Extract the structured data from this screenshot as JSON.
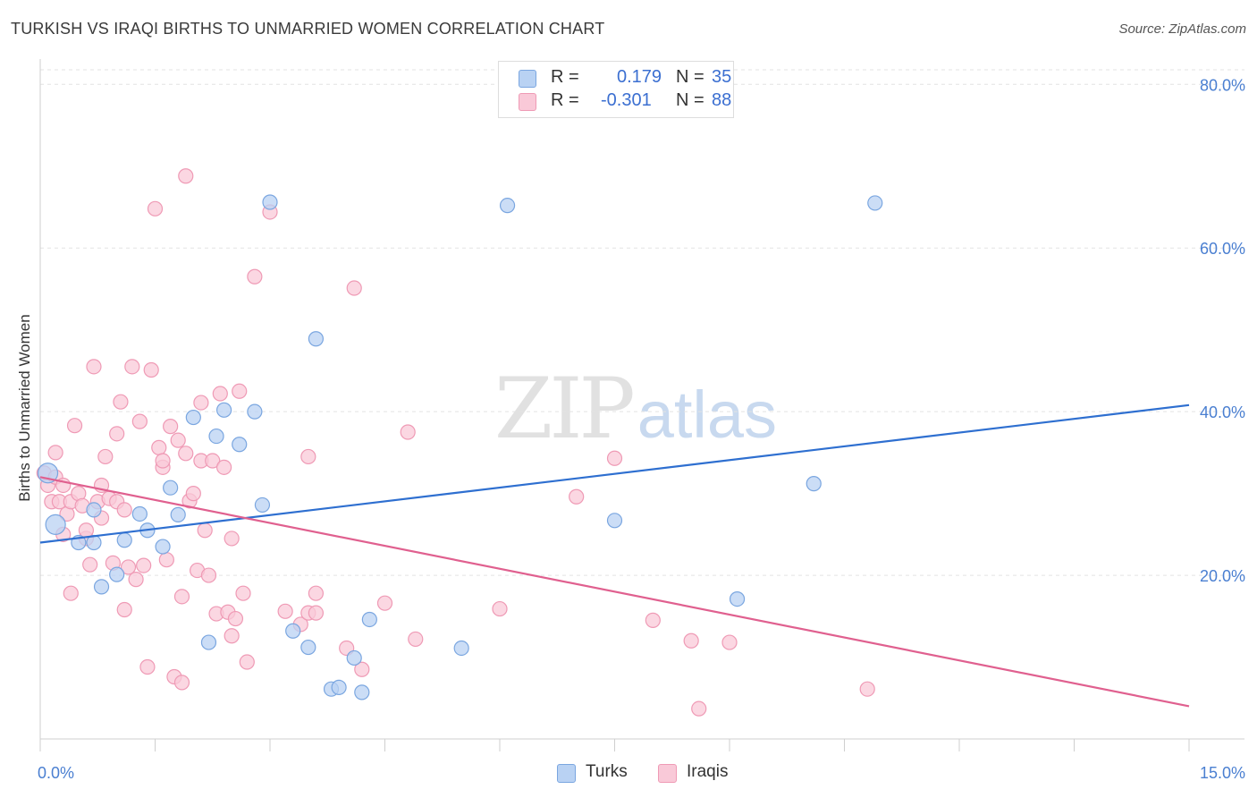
{
  "title": "TURKISH VS IRAQI BIRTHS TO UNMARRIED WOMEN CORRELATION CHART",
  "source": "Source: ZipAtlas.com",
  "watermark": {
    "zip": "ZIP",
    "atlas": "atlas"
  },
  "legend_top": [
    {
      "series": "Turks",
      "r_label": "R =",
      "r_value": "0.179",
      "n_label": "N =",
      "n_value": "35"
    },
    {
      "series": "Iraqis",
      "r_label": "R =",
      "r_value": "-0.301",
      "n_label": "N =",
      "n_value": "88"
    }
  ],
  "legend_bottom": {
    "turks": "Turks",
    "iraqis": "Iraqis"
  },
  "colors": {
    "turks_fill": "#b9d2f3",
    "turks_stroke": "#7aa6e0",
    "turks_line": "#2e6fd0",
    "iraqis_fill": "#f9c9d8",
    "iraqis_stroke": "#ef9ab5",
    "iraqis_line": "#e0608f",
    "tick_text": "#4a7fd1",
    "grid": "#e3e3e3"
  },
  "chart_data": {
    "type": "scatter",
    "xlabel": "",
    "ylabel": "Births to Unmarried Women",
    "xlim": [
      0,
      15
    ],
    "ylim": [
      0,
      82
    ],
    "x_ticks_labeled": [
      {
        "value": 0,
        "label": "0.0%"
      },
      {
        "value": 15,
        "label": "15.0%"
      }
    ],
    "x_tick_marks": [
      0,
      1.5,
      3,
      4.5,
      6,
      7.5,
      9,
      10.5,
      12,
      13.5,
      15
    ],
    "y_ticks": [
      {
        "value": 20,
        "label": "20.0%"
      },
      {
        "value": 40,
        "label": "40.0%"
      },
      {
        "value": 60,
        "label": "60.0%"
      },
      {
        "value": 80,
        "label": "80.0%"
      }
    ],
    "grid": true,
    "series": [
      {
        "name": "Turks",
        "trend": {
          "x": [
            0,
            15
          ],
          "y": [
            24.0,
            40.8
          ]
        },
        "points": [
          [
            0.1,
            32.5
          ],
          [
            0.2,
            26.2
          ],
          [
            0.7,
            24.0
          ],
          [
            0.5,
            24.0
          ],
          [
            0.7,
            28.0
          ],
          [
            0.8,
            18.6
          ],
          [
            1.0,
            20.1
          ],
          [
            1.1,
            24.3
          ],
          [
            1.3,
            27.5
          ],
          [
            1.4,
            25.5
          ],
          [
            1.6,
            23.5
          ],
          [
            1.7,
            30.7
          ],
          [
            1.8,
            27.4
          ],
          [
            2.0,
            39.3
          ],
          [
            2.2,
            11.8
          ],
          [
            2.3,
            37.0
          ],
          [
            2.4,
            40.2
          ],
          [
            2.6,
            36.0
          ],
          [
            2.8,
            40.0
          ],
          [
            2.9,
            28.6
          ],
          [
            3.0,
            65.6
          ],
          [
            3.3,
            13.2
          ],
          [
            3.5,
            11.2
          ],
          [
            3.6,
            48.9
          ],
          [
            3.8,
            6.1
          ],
          [
            3.9,
            6.3
          ],
          [
            4.1,
            9.9
          ],
          [
            4.2,
            5.7
          ],
          [
            4.3,
            14.6
          ],
          [
            5.5,
            11.1
          ],
          [
            6.1,
            65.2
          ],
          [
            7.5,
            26.7
          ],
          [
            9.1,
            17.1
          ],
          [
            10.1,
            31.2
          ],
          [
            10.9,
            65.5
          ]
        ]
      },
      {
        "name": "Iraqis",
        "trend": {
          "x": [
            0,
            15
          ],
          "y": [
            32.0,
            4.0
          ]
        },
        "points": [
          [
            0.05,
            32.5
          ],
          [
            0.1,
            31.0
          ],
          [
            0.15,
            29.0
          ],
          [
            0.2,
            32.0
          ],
          [
            0.2,
            35.0
          ],
          [
            0.25,
            29.0
          ],
          [
            0.3,
            31.0
          ],
          [
            0.3,
            25.0
          ],
          [
            0.35,
            27.5
          ],
          [
            0.4,
            17.8
          ],
          [
            0.4,
            29.0
          ],
          [
            0.45,
            38.3
          ],
          [
            0.5,
            30.0
          ],
          [
            0.55,
            28.5
          ],
          [
            0.6,
            24.5
          ],
          [
            0.6,
            25.5
          ],
          [
            0.65,
            21.3
          ],
          [
            0.7,
            45.5
          ],
          [
            0.75,
            29.0
          ],
          [
            0.8,
            27.0
          ],
          [
            0.8,
            31.0
          ],
          [
            0.85,
            34.5
          ],
          [
            0.9,
            29.4
          ],
          [
            0.95,
            21.5
          ],
          [
            1.0,
            29.0
          ],
          [
            1.0,
            37.3
          ],
          [
            1.05,
            41.2
          ],
          [
            1.1,
            28.0
          ],
          [
            1.1,
            15.8
          ],
          [
            1.15,
            21.0
          ],
          [
            1.2,
            45.5
          ],
          [
            1.25,
            19.5
          ],
          [
            1.3,
            38.8
          ],
          [
            1.35,
            21.2
          ],
          [
            1.4,
            8.8
          ],
          [
            1.45,
            45.1
          ],
          [
            1.5,
            64.8
          ],
          [
            1.55,
            35.6
          ],
          [
            1.6,
            33.2
          ],
          [
            1.6,
            34.0
          ],
          [
            1.65,
            21.9
          ],
          [
            1.7,
            38.2
          ],
          [
            1.75,
            7.6
          ],
          [
            1.8,
            36.5
          ],
          [
            1.85,
            17.4
          ],
          [
            1.85,
            6.9
          ],
          [
            1.9,
            34.9
          ],
          [
            1.95,
            29.1
          ],
          [
            1.9,
            68.8
          ],
          [
            2.0,
            30.0
          ],
          [
            2.05,
            20.6
          ],
          [
            2.1,
            41.1
          ],
          [
            2.1,
            34.0
          ],
          [
            2.15,
            25.5
          ],
          [
            2.2,
            20.0
          ],
          [
            2.25,
            34.0
          ],
          [
            2.3,
            15.3
          ],
          [
            2.35,
            42.2
          ],
          [
            2.4,
            33.2
          ],
          [
            2.45,
            15.5
          ],
          [
            2.5,
            12.6
          ],
          [
            2.5,
            24.5
          ],
          [
            2.55,
            14.7
          ],
          [
            2.6,
            42.5
          ],
          [
            2.65,
            17.8
          ],
          [
            2.7,
            9.4
          ],
          [
            2.8,
            56.5
          ],
          [
            3.0,
            64.4
          ],
          [
            3.2,
            15.6
          ],
          [
            3.4,
            14.0
          ],
          [
            3.5,
            15.4
          ],
          [
            3.6,
            17.8
          ],
          [
            3.5,
            34.5
          ],
          [
            3.6,
            15.4
          ],
          [
            4.0,
            11.1
          ],
          [
            4.1,
            55.1
          ],
          [
            4.2,
            8.5
          ],
          [
            4.5,
            16.6
          ],
          [
            4.8,
            37.5
          ],
          [
            4.9,
            12.2
          ],
          [
            6.0,
            15.9
          ],
          [
            7.0,
            29.6
          ],
          [
            7.5,
            34.3
          ],
          [
            8.0,
            14.5
          ],
          [
            8.5,
            12.0
          ],
          [
            8.6,
            3.7
          ],
          [
            9.0,
            11.8
          ],
          [
            10.8,
            6.1
          ]
        ]
      }
    ]
  }
}
